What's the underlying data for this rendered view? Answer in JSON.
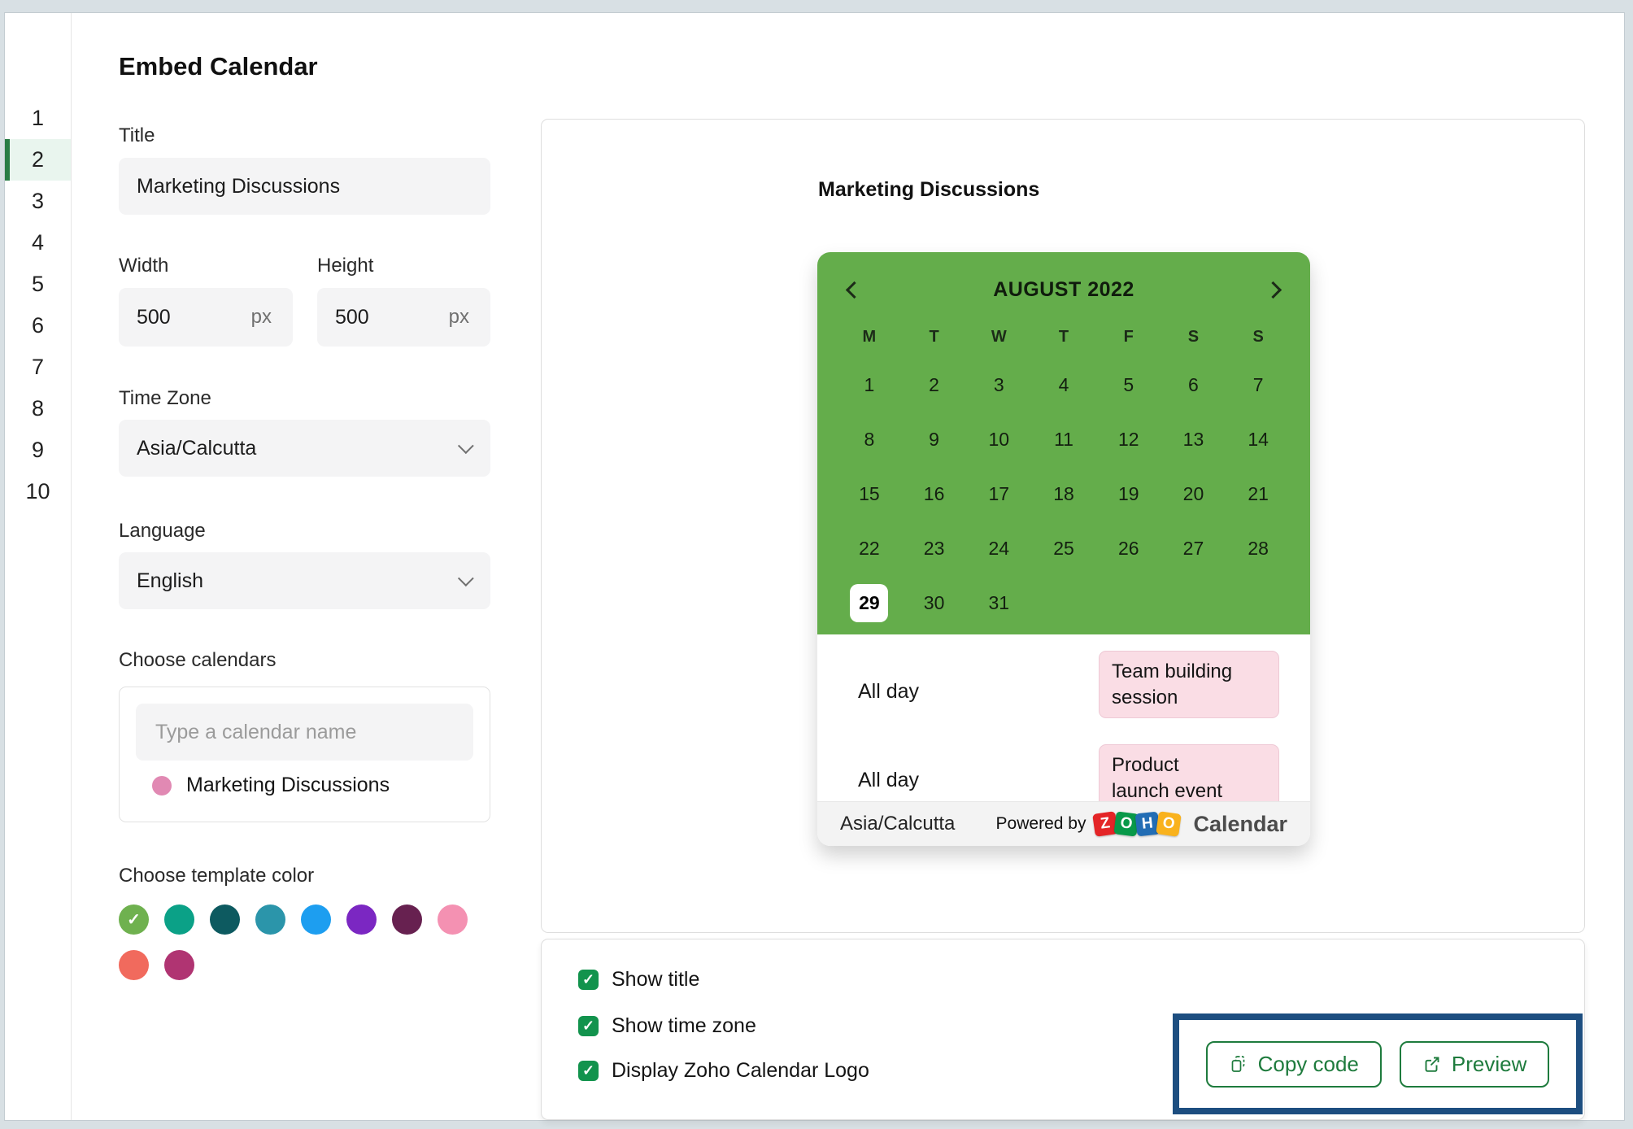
{
  "page": {
    "background": "#d8e0e4",
    "title": "Embed Calendar"
  },
  "sidebar": {
    "items": [
      "1",
      "2",
      "3",
      "4",
      "5",
      "6",
      "7",
      "8",
      "9",
      "10"
    ],
    "active": "2",
    "active_color": "#2a7c45"
  },
  "form": {
    "title": {
      "label": "Title",
      "value": "Marketing Discussions"
    },
    "width": {
      "label": "Width",
      "value": "500",
      "unit": "px"
    },
    "height": {
      "label": "Height",
      "value": "500",
      "unit": "px"
    },
    "timezone": {
      "label": "Time Zone",
      "value": "Asia/Calcutta"
    },
    "language": {
      "label": "Language",
      "value": "English"
    },
    "calendars": {
      "label": "Choose calendars",
      "search_placeholder": "Type a calendar name",
      "items": [
        {
          "name": "Marketing Discussions",
          "color": "#e189b3"
        }
      ]
    },
    "template_color": {
      "label": "Choose template color",
      "selected_index": 0,
      "colors": [
        "#6fb14f",
        "#0ba187",
        "#0d5a60",
        "#2b95aa",
        "#1d9ef0",
        "#7b27c2",
        "#672150",
        "#f491b2",
        "#f16a5d",
        "#b03472"
      ]
    }
  },
  "preview": {
    "title": "Marketing Discussions",
    "calendar": {
      "accent_color": "#64ad4b",
      "month_label": "AUGUST 2022",
      "day_headers": [
        "M",
        "T",
        "W",
        "T",
        "F",
        "S",
        "S"
      ],
      "weeks": [
        [
          "1",
          "2",
          "3",
          "4",
          "5",
          "6",
          "7"
        ],
        [
          "8",
          "9",
          "10",
          "11",
          "12",
          "13",
          "14"
        ],
        [
          "15",
          "16",
          "17",
          "18",
          "19",
          "20",
          "21"
        ],
        [
          "22",
          "23",
          "24",
          "25",
          "26",
          "27",
          "28"
        ],
        [
          "29",
          "30",
          "31",
          "",
          "",
          "",
          ""
        ]
      ],
      "selected_day": "29",
      "event_color": "#fadde5",
      "events": [
        {
          "time": "All day",
          "title": "Team building session",
          "lines": [
            "Team building",
            "session"
          ]
        },
        {
          "time": "All day",
          "title": "Product launch event",
          "lines": [
            "Product",
            "launch event"
          ]
        }
      ],
      "footer": {
        "timezone": "Asia/Calcutta",
        "powered_by": "Powered by",
        "logo": {
          "tiles": [
            {
              "letter": "Z",
              "color": "#e42527"
            },
            {
              "letter": "O",
              "color": "#089949"
            },
            {
              "letter": "H",
              "color": "#226db4"
            },
            {
              "letter": "O",
              "color": "#f9b21d"
            }
          ],
          "product": "Calendar"
        }
      }
    },
    "options": [
      {
        "label": "Show title",
        "checked": true
      },
      {
        "label": "Show time zone",
        "checked": true
      },
      {
        "label": "Display Zoho Calendar Logo",
        "checked": true
      }
    ],
    "actions": {
      "copy": {
        "label": "Copy code"
      },
      "preview": {
        "label": "Preview"
      }
    },
    "highlight_color": "#1d4e80"
  }
}
